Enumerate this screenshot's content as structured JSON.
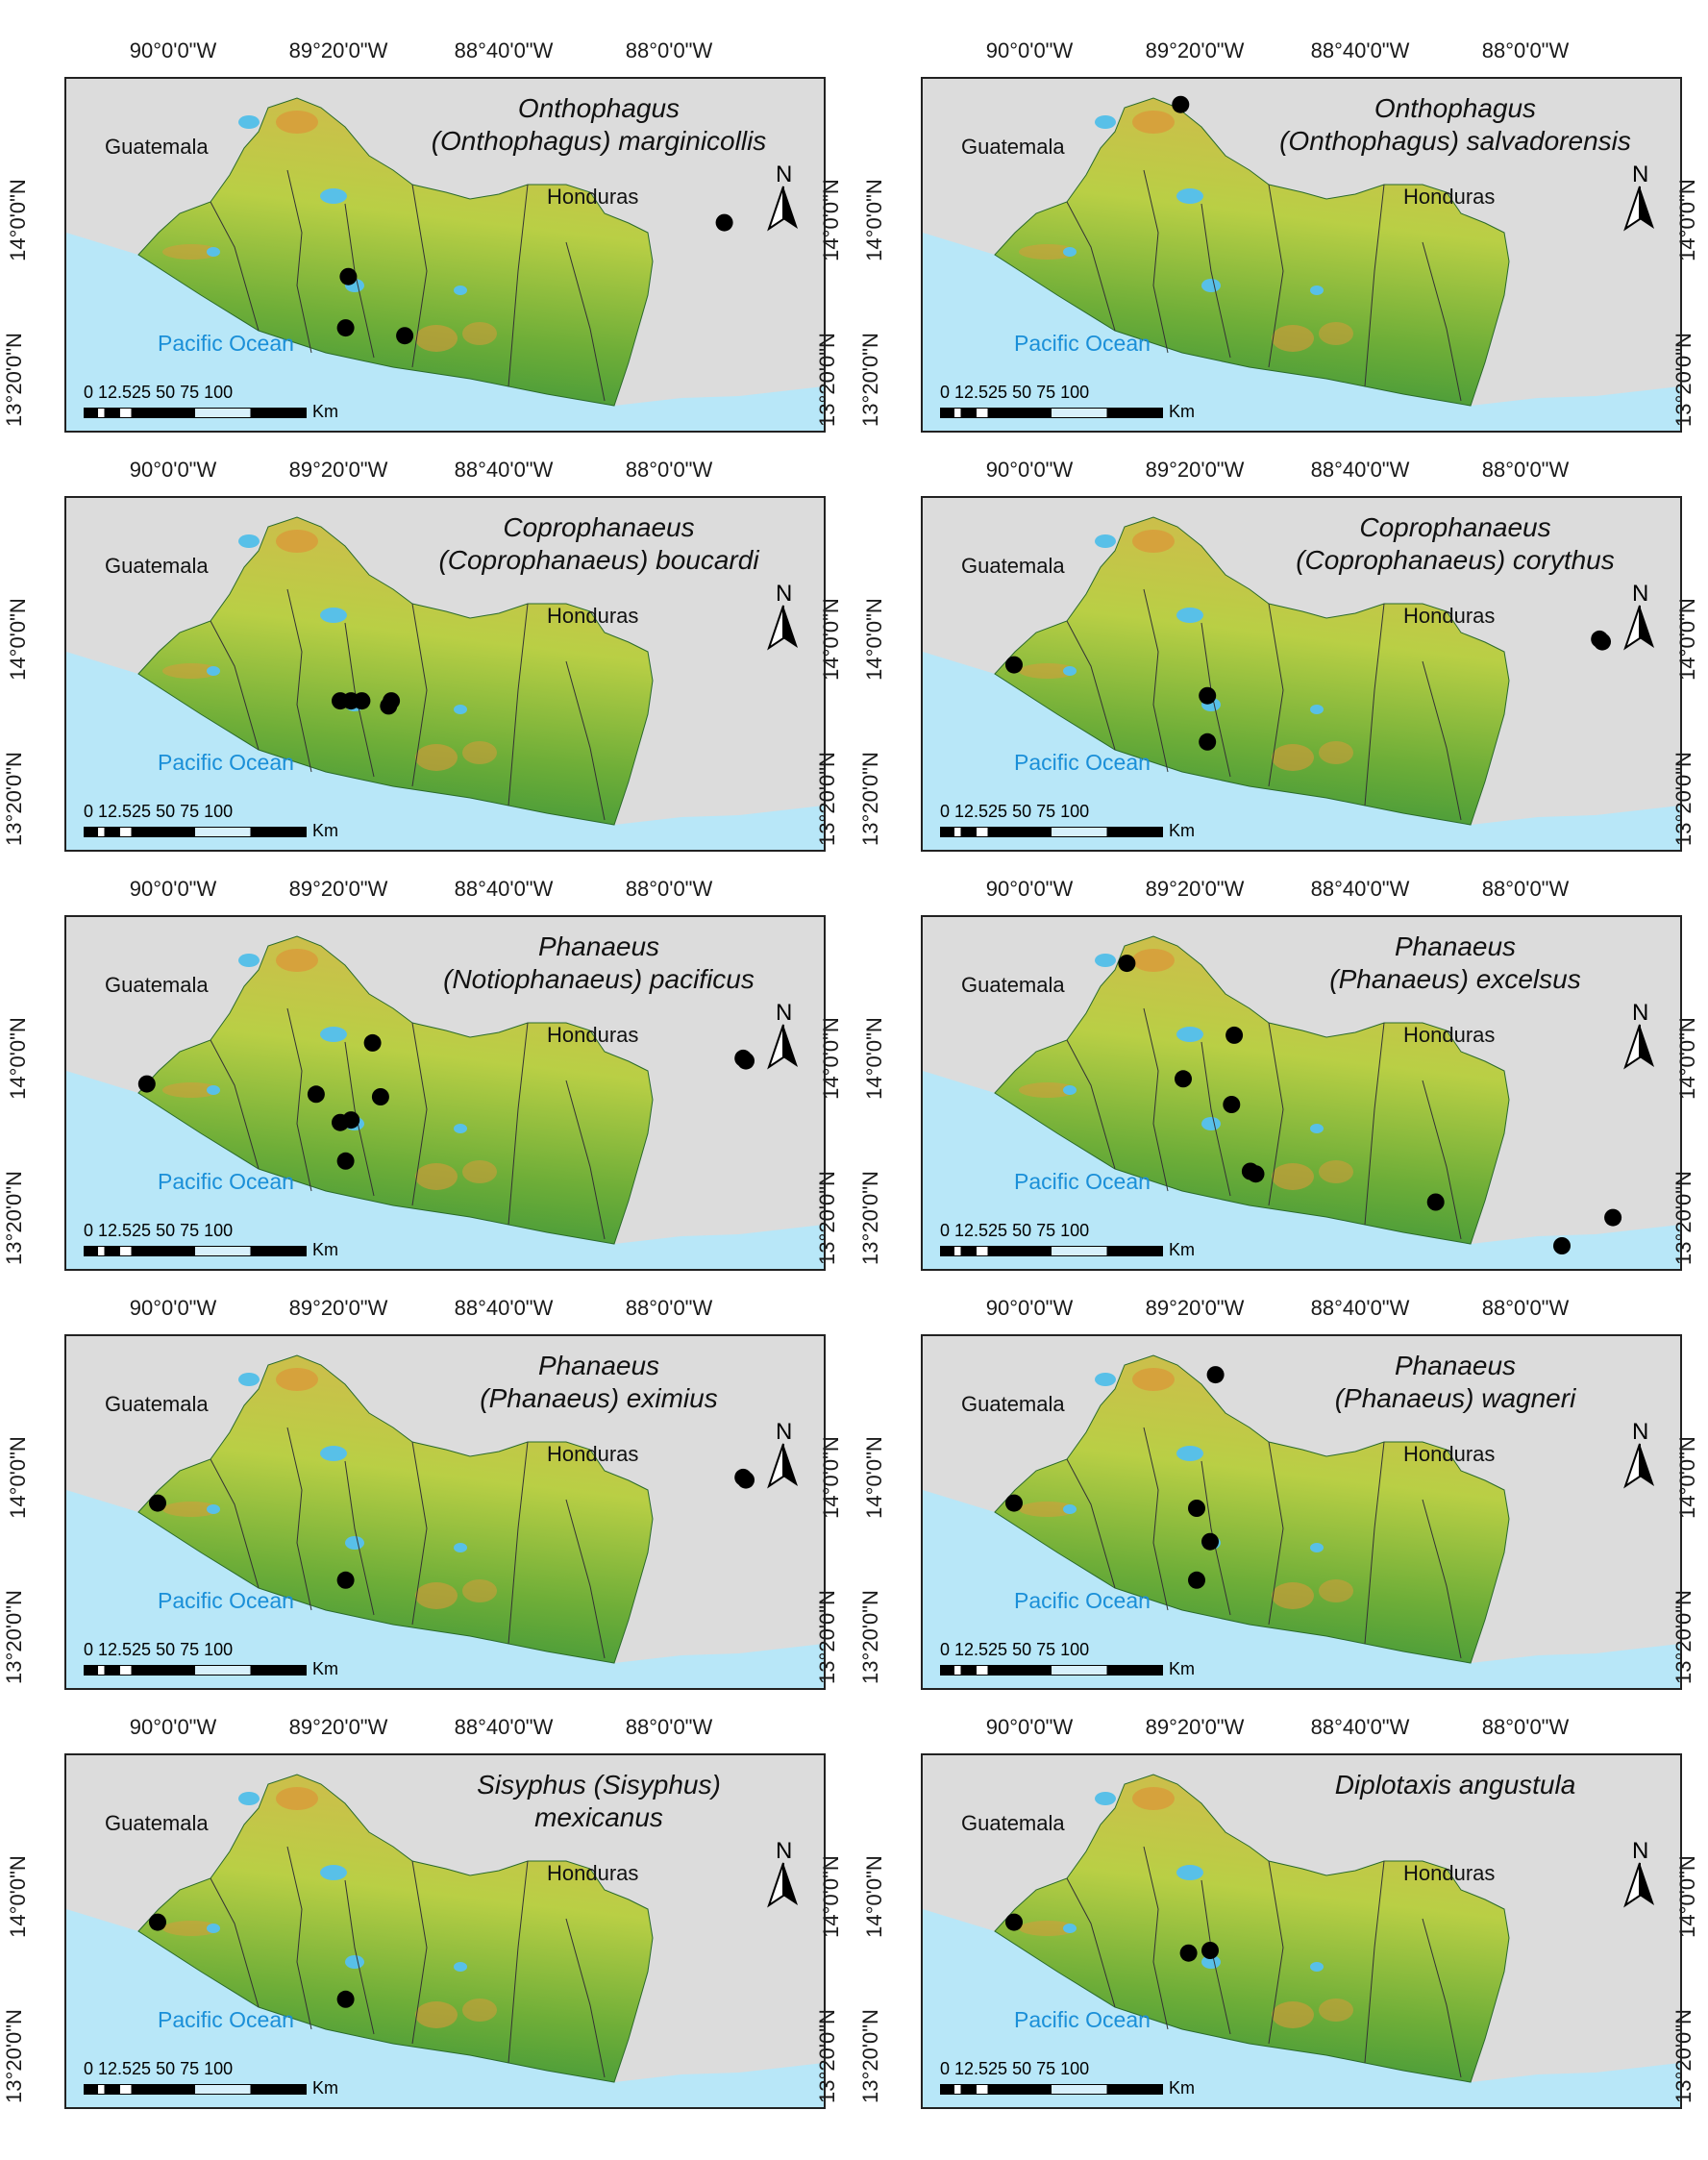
{
  "axis_ticks": {
    "lon": [
      "90°0'0\"W",
      "89°20'0\"W",
      "88°40'0\"W",
      "88°0'0\"W"
    ],
    "lat": [
      "14°0'0\"N",
      "13°20'0\"N"
    ]
  },
  "labels": {
    "guatemala": "Guatemala",
    "honduras": "Honduras",
    "ocean": "Pacific Ocean",
    "north": "N"
  },
  "scale": {
    "numbers": "0 12.525     50      75     100",
    "unit": "Km"
  },
  "colors": {
    "ocean": "#b8e7f8",
    "land_low": "#2f8f3a",
    "land_mid": "#a9c93c",
    "land_high": "#d99a3a",
    "background": "#dcdcdc",
    "lake": "#58c0e8",
    "point": "#000000"
  },
  "panels": [
    {
      "title_line1": "Onthophagus",
      "title_line2": "(Onthophagus) marginicollis",
      "points": [
        [
          -87.92,
          13.91
        ],
        [
          -89.32,
          13.7
        ],
        [
          -89.33,
          13.5
        ],
        [
          -89.11,
          13.47
        ]
      ]
    },
    {
      "title_line1": "Onthophagus",
      "title_line2": "(Onthophagus) salvadorensis",
      "points": [
        [
          -89.41,
          14.37
        ]
      ]
    },
    {
      "title_line1": "Coprophanaeus",
      "title_line2": "(Coprophanaeus) boucardi",
      "points": [
        [
          -89.35,
          13.68
        ],
        [
          -89.31,
          13.68
        ],
        [
          -89.27,
          13.68
        ],
        [
          -89.16,
          13.68
        ],
        [
          -89.17,
          13.66
        ]
      ]
    },
    {
      "title_line1": "Coprophanaeus",
      "title_line2": "(Coprophanaeus) corythus",
      "points": [
        [
          -90.03,
          13.82
        ],
        [
          -89.31,
          13.7
        ],
        [
          -89.31,
          13.52
        ],
        [
          -87.85,
          13.92
        ],
        [
          -87.84,
          13.91
        ]
      ]
    },
    {
      "title_line1": "Phanaeus",
      "title_line2": "(Notiophanaeus) pacificus",
      "points": [
        [
          -90.07,
          13.82
        ],
        [
          -89.44,
          13.78
        ],
        [
          -89.35,
          13.67
        ],
        [
          -89.31,
          13.68
        ],
        [
          -89.23,
          13.98
        ],
        [
          -89.2,
          13.77
        ],
        [
          -89.33,
          13.52
        ],
        [
          -87.85,
          13.92
        ],
        [
          -87.84,
          13.91
        ]
      ]
    },
    {
      "title_line1": "Phanaeus",
      "title_line2": "(Phanaeus) excelsus",
      "points": [
        [
          -89.61,
          14.29
        ],
        [
          -89.21,
          14.01
        ],
        [
          -89.4,
          13.84
        ],
        [
          -89.22,
          13.74
        ],
        [
          -89.15,
          13.48
        ],
        [
          -89.13,
          13.47
        ],
        [
          -88.46,
          13.36
        ],
        [
          -87.99,
          13.19
        ],
        [
          -87.8,
          13.3
        ]
      ]
    },
    {
      "title_line1": "Phanaeus",
      "title_line2": "(Phanaeus) eximius",
      "points": [
        [
          -90.03,
          13.82
        ],
        [
          -89.33,
          13.52
        ],
        [
          -87.85,
          13.92
        ],
        [
          -87.84,
          13.91
        ]
      ]
    },
    {
      "title_line1": "Phanaeus",
      "title_line2": "(Phanaeus) wagneri",
      "points": [
        [
          -90.03,
          13.82
        ],
        [
          -89.28,
          14.32
        ],
        [
          -89.35,
          13.8
        ],
        [
          -89.3,
          13.67
        ],
        [
          -89.35,
          13.52
        ]
      ]
    },
    {
      "title_line1": "Sisyphus (Sisyphus)",
      "title_line2": "mexicanus",
      "points": [
        [
          -90.03,
          13.82
        ],
        [
          -89.33,
          13.52
        ]
      ]
    },
    {
      "title_line1": "Diplotaxis angustula",
      "title_line2": "",
      "points": [
        [
          -90.03,
          13.82
        ],
        [
          -89.38,
          13.7
        ],
        [
          -89.3,
          13.71
        ]
      ]
    }
  ]
}
